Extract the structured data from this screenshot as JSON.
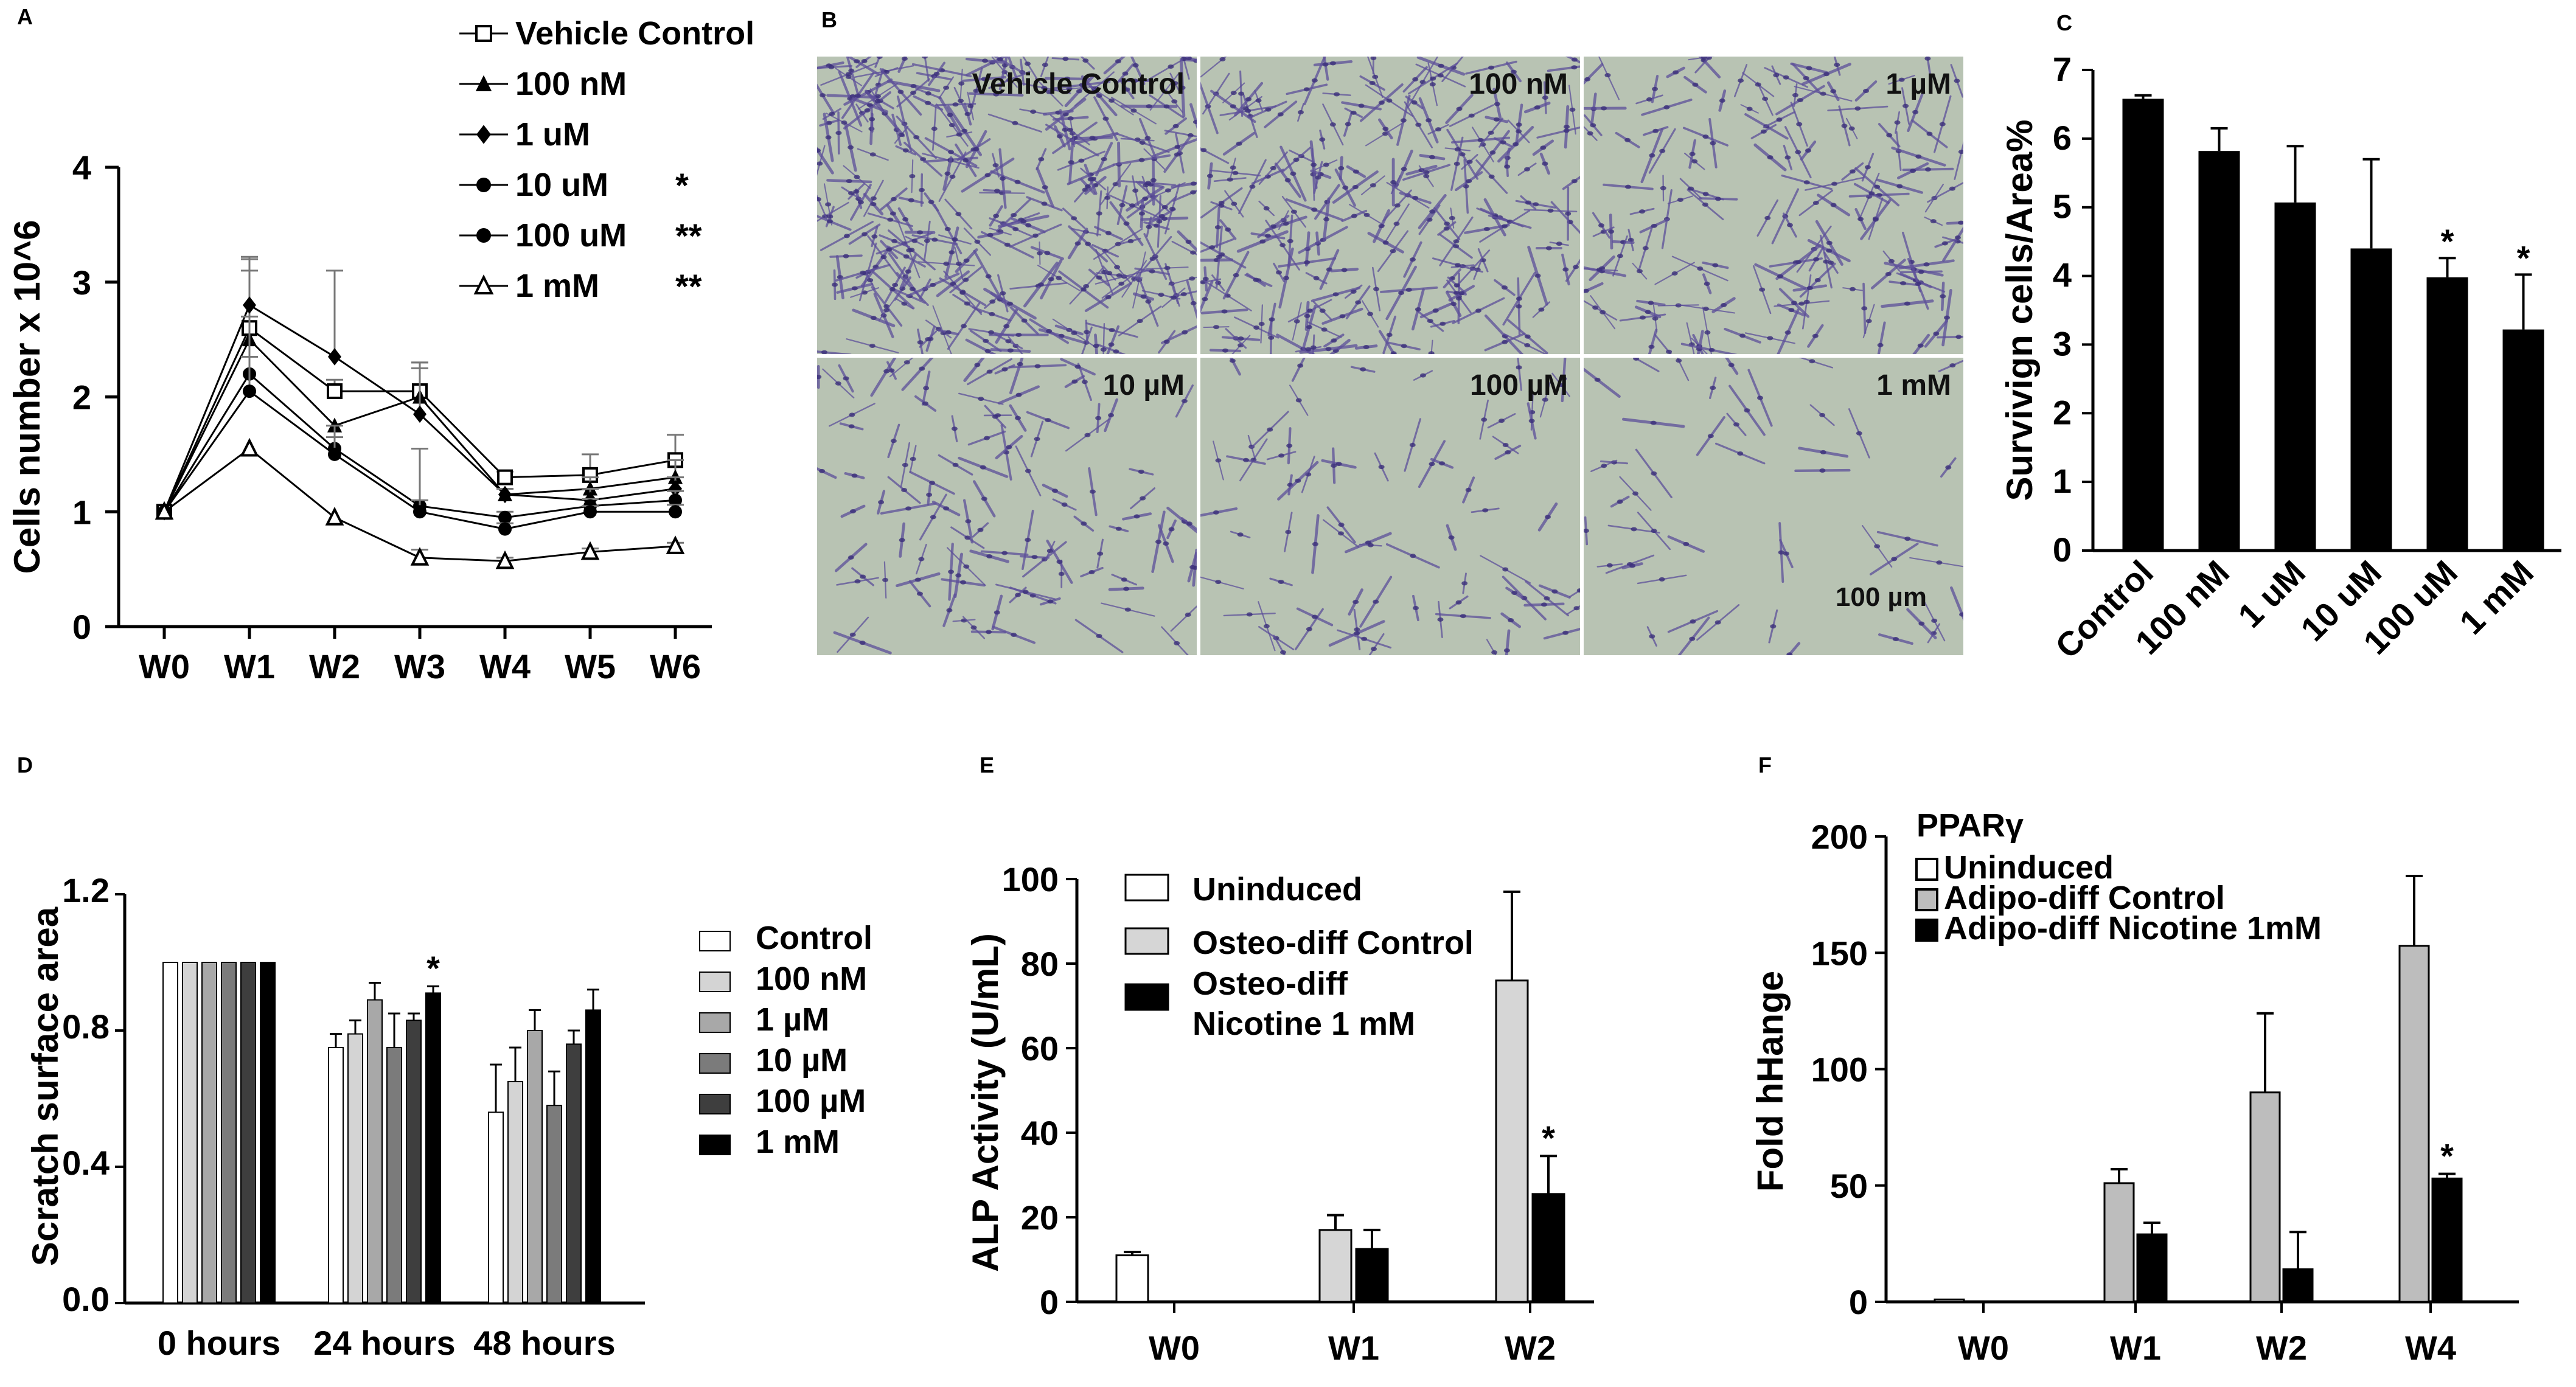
{
  "panels": {
    "a": "A",
    "b": "B",
    "c": "C",
    "d": "D",
    "e": "E",
    "f": "F"
  },
  "micrographs": {
    "labels": [
      "Vehicle Control",
      "100 nM",
      "1 µM",
      "10 µM",
      "100 µM",
      "1 mM"
    ],
    "densities": [
      1.0,
      0.7,
      0.5,
      0.32,
      0.22,
      0.14
    ],
    "scale_bar": "100 µm",
    "background_color": "#b8c3b3",
    "stain_color": "#5d4f9a"
  },
  "chart_data": [
    {
      "id": "A",
      "type": "line",
      "ylabel": "Cells number x 10^6",
      "xlabel": "",
      "categories": [
        "W0",
        "W1",
        "W2",
        "W3",
        "W4",
        "W5",
        "W6"
      ],
      "ylim": [
        0,
        4
      ],
      "yticks": [
        0,
        1,
        2,
        3,
        4
      ],
      "legend_position": "top-right",
      "series": [
        {
          "name": "Vehicle Control",
          "marker": "open-square",
          "sig": "",
          "values": [
            1.0,
            2.6,
            2.05,
            2.05,
            1.3,
            1.32,
            1.45
          ],
          "err": [
            0,
            0.5,
            0.1,
            0.25,
            0.05,
            0.18,
            0.22
          ]
        },
        {
          "name": "100 nM",
          "marker": "filled-triangle",
          "sig": "",
          "values": [
            1.0,
            2.5,
            1.75,
            2.0,
            1.15,
            1.2,
            1.3
          ],
          "err": [
            0,
            0.7,
            0,
            0.3,
            0.05,
            0.1,
            0.15
          ]
        },
        {
          "name": "1 uM",
          "marker": "filled-diamond",
          "sig": "",
          "values": [
            1.0,
            2.8,
            2.35,
            1.85,
            1.15,
            1.1,
            1.2
          ],
          "err": [
            0,
            0.42,
            0.75,
            0.4,
            0.05,
            0.1,
            0.1
          ]
        },
        {
          "name": "10 uM",
          "marker": "filled-circle",
          "sig": "*",
          "values": [
            1.0,
            2.2,
            1.55,
            1.05,
            0.95,
            1.05,
            1.1
          ],
          "err": [
            0,
            0.5,
            0.2,
            0.5,
            0.05,
            0.06,
            0.08
          ]
        },
        {
          "name": "100 uM",
          "marker": "filled-circle",
          "sig": "**",
          "values": [
            1.0,
            2.05,
            1.5,
            1.0,
            0.85,
            1.0,
            1.0
          ],
          "err": [
            0,
            0.3,
            0.15,
            0.1,
            0.05,
            0.05,
            0.06
          ]
        },
        {
          "name": "1 mM",
          "marker": "open-triangle",
          "sig": "**",
          "values": [
            1.0,
            1.55,
            0.95,
            0.6,
            0.57,
            0.65,
            0.7
          ],
          "err": [
            0,
            0,
            0,
            0.07,
            0.03,
            0.03,
            0.03
          ]
        }
      ]
    },
    {
      "id": "C",
      "type": "bar",
      "ylabel": "Survivign cells/Area%",
      "categories": [
        "Control",
        "100 nM",
        "1 uM",
        "10 uM",
        "100 uM",
        "1 mM"
      ],
      "values": [
        6.58,
        5.82,
        5.07,
        4.4,
        3.98,
        3.22
      ],
      "err": [
        0.05,
        0.33,
        0.82,
        1.3,
        0.28,
        0.8
      ],
      "sig": [
        "",
        "",
        "",
        "",
        "*",
        "*"
      ],
      "ylim": [
        0,
        7
      ],
      "yticks": [
        0,
        1,
        2,
        3,
        4,
        5,
        6,
        7
      ],
      "color": "#000000"
    },
    {
      "id": "D",
      "type": "bar",
      "ylabel": "Scratch surface area",
      "categories": [
        "0 hours",
        "24 hours",
        "48 hours"
      ],
      "ylim": [
        0,
        1.2
      ],
      "yticks": [
        "0.0",
        "0.4",
        "0.8",
        "1.2"
      ],
      "legend_position": "right",
      "series": [
        {
          "name": "Control",
          "color": "#ffffff",
          "values": [
            1.0,
            0.75,
            0.56
          ],
          "err": [
            0,
            0.04,
            0.14
          ]
        },
        {
          "name": "100 nM",
          "color": "#d4d4d4",
          "values": [
            1.0,
            0.79,
            0.65
          ],
          "err": [
            0,
            0.04,
            0.1
          ]
        },
        {
          "name": "1 µM",
          "color": "#a8a8a8",
          "values": [
            1.0,
            0.89,
            0.8
          ],
          "err": [
            0,
            0.05,
            0.06
          ]
        },
        {
          "name": "10 µM",
          "color": "#7b7b7b",
          "values": [
            1.0,
            0.75,
            0.58
          ],
          "err": [
            0,
            0.1,
            0.1
          ]
        },
        {
          "name": "100 µM",
          "color": "#3e3e3e",
          "values": [
            1.0,
            0.83,
            0.76
          ],
          "err": [
            0,
            0.02,
            0.04
          ]
        },
        {
          "name": "1 mM",
          "color": "#000000",
          "values": [
            1.0,
            0.91,
            0.86
          ],
          "err": [
            0,
            0.02,
            0.06
          ]
        }
      ],
      "sig_mark": {
        "series": 5,
        "category": 1,
        "text": "*"
      }
    },
    {
      "id": "E",
      "type": "bar",
      "ylabel": "ALP Activity (U/mL)",
      "categories": [
        "W0",
        "W1",
        "W2"
      ],
      "ylim": [
        0,
        100
      ],
      "yticks": [
        0,
        20,
        40,
        60,
        80,
        100
      ],
      "legend_position": "top-left",
      "series": [
        {
          "name": "Uninduced",
          "color": "#ffffff",
          "values": [
            11,
            null,
            null
          ],
          "err": [
            0.8,
            0,
            0
          ]
        },
        {
          "name": "Osteo-diff Control",
          "color": "#d6d6d6",
          "values": [
            null,
            17,
            76
          ],
          "err": [
            0,
            3.5,
            21
          ]
        },
        {
          "name": "Osteo-diff Nicotine 1 mM",
          "legend_lines": [
            "Osteo-diff",
            "Nicotine 1 mM"
          ],
          "color": "#000000",
          "values": [
            null,
            12.5,
            25.5
          ],
          "err": [
            0,
            4.5,
            9
          ]
        }
      ],
      "sig_mark": {
        "series": 2,
        "category": 2,
        "text": "*"
      }
    },
    {
      "id": "F",
      "type": "bar",
      "title": "PPARγ",
      "ylabel": "Fold hHange",
      "categories": [
        "W0",
        "W1",
        "W2",
        "W4"
      ],
      "ylim": [
        0,
        200
      ],
      "yticks": [
        0,
        50,
        100,
        150,
        200
      ],
      "legend_position": "top-left",
      "series": [
        {
          "name": "Uninduced",
          "color": "#ffffff",
          "values": [
            1,
            null,
            null,
            null
          ],
          "err": [
            0,
            0,
            0,
            0
          ]
        },
        {
          "name": "Adipo-diff Control",
          "color": "#bdbdbd",
          "values": [
            null,
            51,
            90,
            153
          ],
          "err": [
            0,
            6,
            34,
            30
          ]
        },
        {
          "name": "Adipo-diff Nicotine 1mM",
          "color": "#000000",
          "values": [
            null,
            29,
            14,
            53
          ],
          "err": [
            0,
            5,
            16,
            2
          ]
        }
      ],
      "sig_mark": {
        "series": 2,
        "category": 3,
        "text": "*"
      }
    }
  ]
}
